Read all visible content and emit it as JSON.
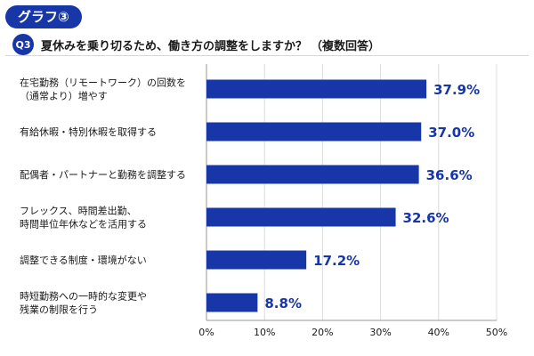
{
  "header": {
    "badge": "グラフ③",
    "q_num": "Q3",
    "question": "夏休みを乗り切るため、働き方の調整をしますか？",
    "note": "（複数回答）"
  },
  "colors": {
    "bar": "#1736a8",
    "axis": "#9a9a9a",
    "grid": "#dcdcdc"
  },
  "chart_data": {
    "type": "bar",
    "orientation": "horizontal",
    "categories": [
      [
        "在宅勤務（リモートワーク）の回数を",
        "（通常より）増やす"
      ],
      [
        "有給休暇・特別休暇を取得する"
      ],
      [
        "配偶者・パートナーと勤務を調整する"
      ],
      [
        "フレックス、時間差出勤、",
        "時間単位年休などを活用する"
      ],
      [
        "調整できる制度・環境がない"
      ],
      [
        "時短勤務への一時的な変更や",
        "残業の制限を行う"
      ]
    ],
    "values": [
      37.9,
      37.0,
      36.6,
      32.6,
      17.2,
      8.8
    ],
    "value_labels": [
      "37.9%",
      "37.0%",
      "36.6%",
      "32.6%",
      "17.2%",
      "8.8%"
    ],
    "xlim": [
      0,
      50
    ],
    "ticks": [
      0,
      10,
      20,
      30,
      40,
      50
    ],
    "tick_labels": [
      "0%",
      "10%",
      "20%",
      "30%",
      "40%",
      "50%"
    ],
    "grid": true
  }
}
